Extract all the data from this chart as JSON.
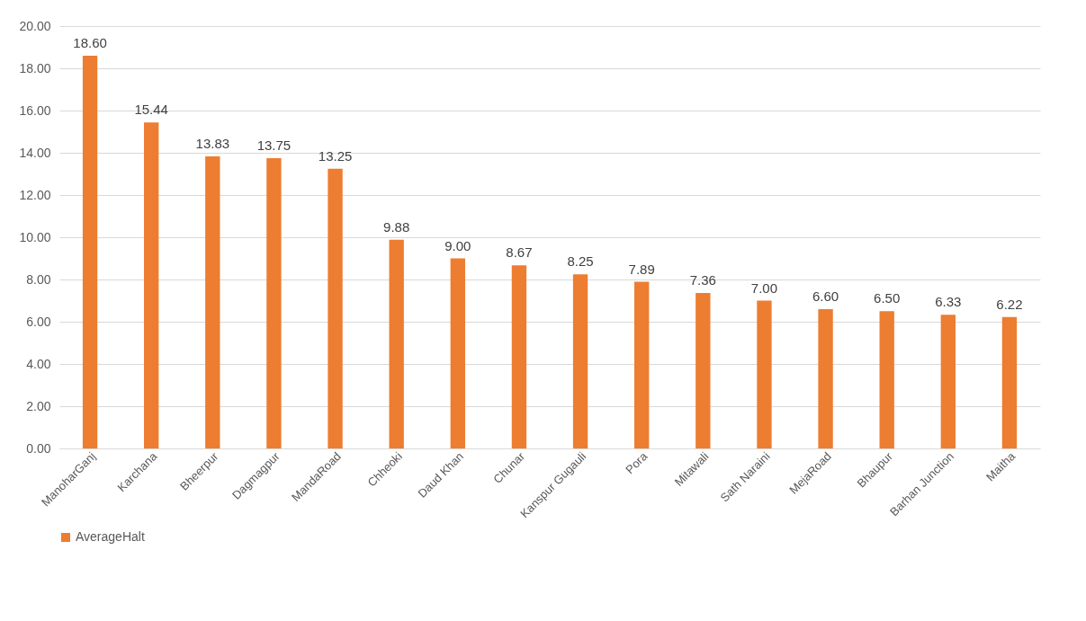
{
  "chart_data": {
    "type": "bar",
    "categories": [
      "ManoharGanj",
      "Karchana",
      "Bheerpur",
      "Dagmagpur",
      "MandaRoad",
      "Chheoki",
      "Daud Khan",
      "Chunar",
      "Kanspur Gugauli",
      "Pora",
      "Mitawali",
      "Sath Naraini",
      "MejaRoad",
      "Bhaupur",
      "Barhan Junction",
      "Maitha"
    ],
    "series": [
      {
        "name": "AverageHalt",
        "color": "#ed7d31",
        "values": [
          18.6,
          15.44,
          13.83,
          13.75,
          13.25,
          9.88,
          9.0,
          8.67,
          8.25,
          7.89,
          7.36,
          7.0,
          6.6,
          6.5,
          6.33,
          6.22
        ],
        "value_labels": [
          "18.60",
          "15.44",
          "13.83",
          "13.75",
          "13.25",
          "9.88",
          "9.00",
          "8.67",
          "8.25",
          "7.89",
          "7.36",
          "7.00",
          "6.60",
          "6.50",
          "6.33",
          "6.22"
        ]
      }
    ],
    "ylim": [
      0,
      20
    ],
    "yticks": [
      {
        "value": 0,
        "label": "0.00"
      },
      {
        "value": 2,
        "label": "2.00"
      },
      {
        "value": 4,
        "label": "4.00"
      },
      {
        "value": 6,
        "label": "6.00"
      },
      {
        "value": 8,
        "label": "8.00"
      },
      {
        "value": 10,
        "label": "10.00"
      },
      {
        "value": 12,
        "label": "12.00"
      },
      {
        "value": 14,
        "label": "14.00"
      },
      {
        "value": 16,
        "label": "16.00"
      },
      {
        "value": 18,
        "label": "18.00"
      },
      {
        "value": 20,
        "label": "20.00"
      }
    ],
    "grid": "y",
    "legend": "bottom"
  }
}
